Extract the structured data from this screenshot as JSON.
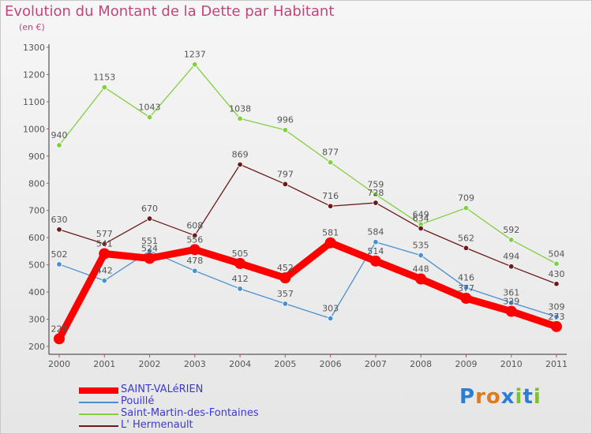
{
  "title": "Evolution du Montant de la Dette par Habitant",
  "subtitle": "(en €)",
  "brand": "Proxiti",
  "chart_data": {
    "type": "line",
    "title": "Evolution du Montant de la Dette par Habitant",
    "subtitle": "(en €)",
    "categories": [
      "2000",
      "2001",
      "2002",
      "2003",
      "2004",
      "2005",
      "2006",
      "2007",
      "2008",
      "2009",
      "2010",
      "2011"
    ],
    "ylim": [
      200,
      1300
    ],
    "yticks": [
      200,
      300,
      400,
      500,
      600,
      700,
      800,
      900,
      1000,
      1100,
      1200,
      1300
    ],
    "grid": false,
    "legend_position": "bottom-left",
    "series": [
      {
        "name": "SAINT-VALéRIEN",
        "color": "#ff0000",
        "values": [
          228,
          541,
          524,
          556,
          505,
          452,
          581,
          514,
          448,
          377,
          329,
          273
        ]
      },
      {
        "name": "Pouillé",
        "color": "#4a90d0",
        "values": [
          502,
          442,
          551,
          478,
          412,
          357,
          303,
          584,
          535,
          416,
          361,
          309
        ]
      },
      {
        "name": "Saint-Martin-des-Fontaines",
        "color": "#80d040",
        "values": [
          940,
          1153,
          1043,
          1237,
          1038,
          996,
          877,
          759,
          649,
          709,
          592,
          504
        ]
      },
      {
        "name": "L' Hermenault",
        "color": "#6b1a1a",
        "values": [
          630,
          577,
          670,
          608,
          869,
          797,
          716,
          728,
          634,
          562,
          494,
          430
        ]
      }
    ]
  }
}
